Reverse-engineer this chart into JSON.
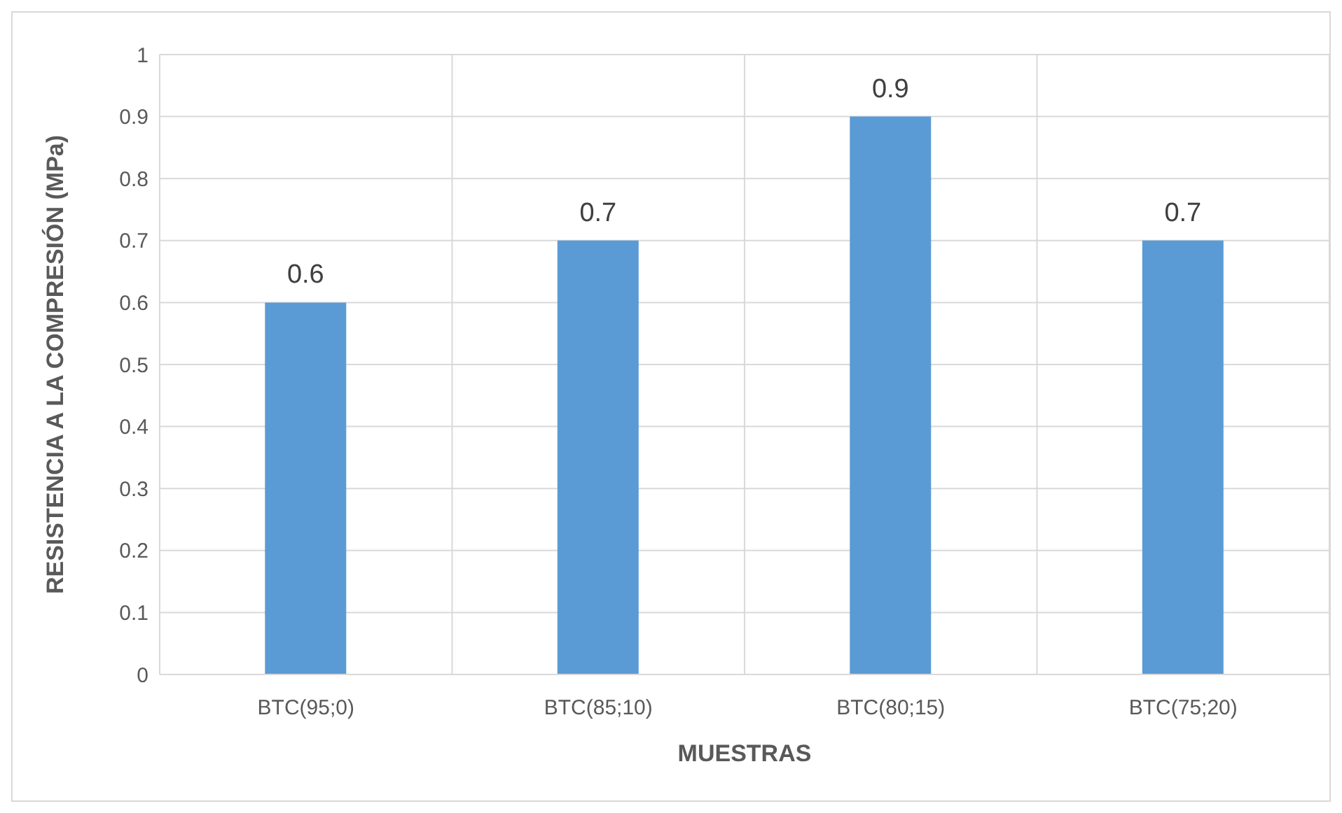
{
  "chart_data": {
    "type": "bar",
    "xlabel": "MUESTRAS",
    "ylabel": "RESISTENCIA A LA COMPRESIÓN (MPa)",
    "categories": [
      "BTC(95;0)",
      "BTC(85;10)",
      "BTC(80;15)",
      "BTC(75;20)"
    ],
    "values": [
      0.6,
      0.7,
      0.9,
      0.7
    ],
    "color": "#5b9bd5",
    "ylim": [
      0,
      1
    ],
    "yticks": [
      0,
      0.1,
      0.2,
      0.3,
      0.4,
      0.5,
      0.6,
      0.7,
      0.8,
      0.9,
      1
    ],
    "grid": true,
    "data_labels": true
  }
}
